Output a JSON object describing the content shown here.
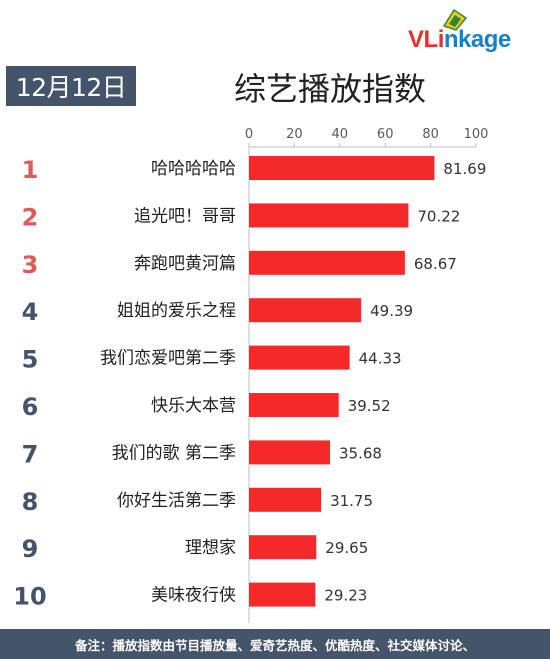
{
  "header": {
    "date": "12月12日",
    "title": "综艺播放指数"
  },
  "logo": {
    "brand": "VLinkage",
    "parts": [
      "V",
      "L",
      "i",
      "nk",
      "age"
    ]
  },
  "colors": {
    "bar": "#f42a2a",
    "rank_top": "#e05a5a",
    "rank_other": "#44546a",
    "badge": "#44546a"
  },
  "chart_data": {
    "type": "bar",
    "orientation": "horizontal",
    "title": "综艺播放指数",
    "ranks": [
      "1",
      "2",
      "3",
      "4",
      "5",
      "6",
      "7",
      "8",
      "9",
      "10"
    ],
    "categories": [
      "哈哈哈哈哈",
      "追光吧！哥哥",
      "奔跑吧黄河篇",
      "姐姐的爱乐之程",
      "我们恋爱吧第二季",
      "快乐大本营",
      "我们的歌 第二季",
      "你好生活第二季",
      "理想家",
      "美味夜行侠"
    ],
    "values": [
      81.69,
      70.22,
      68.67,
      49.39,
      44.33,
      39.52,
      35.68,
      31.75,
      29.65,
      29.23
    ],
    "value_labels": [
      "81.69",
      "70.22",
      "68.67",
      "49.39",
      "44.33",
      "39.52",
      "35.68",
      "31.75",
      "29.65",
      "29.23"
    ],
    "xlim": [
      0,
      100
    ],
    "xticks": [
      0,
      20,
      40,
      60,
      80,
      100
    ],
    "xtick_labels": [
      "0",
      "20",
      "40",
      "60",
      "80",
      "100"
    ],
    "axis_position": "top",
    "grid": false
  },
  "footer": {
    "note": "备注：播放指数由节目播放量、爱奇艺热度、优酷热度、社交媒体讨论、"
  }
}
